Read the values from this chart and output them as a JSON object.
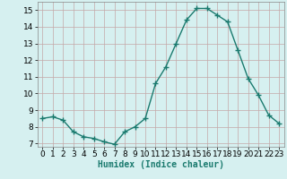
{
  "x": [
    0,
    1,
    2,
    3,
    4,
    5,
    6,
    7,
    8,
    9,
    10,
    11,
    12,
    13,
    14,
    15,
    16,
    17,
    18,
    19,
    20,
    21,
    22,
    23
  ],
  "y": [
    8.5,
    8.6,
    8.4,
    7.7,
    7.4,
    7.3,
    7.1,
    6.95,
    7.7,
    8.0,
    8.5,
    10.6,
    11.6,
    13.0,
    14.4,
    15.1,
    15.1,
    14.7,
    14.3,
    12.6,
    10.9,
    9.9,
    8.7,
    8.2
  ],
  "line_color": "#1a7a6e",
  "marker": "+",
  "marker_size": 4,
  "bg_color": "#d6f0f0",
  "grid_color": "#c4a8a8",
  "xlabel": "Humidex (Indice chaleur)",
  "ylim": [
    6.8,
    15.5
  ],
  "xlim": [
    -0.5,
    23.5
  ],
  "yticks": [
    7,
    8,
    9,
    10,
    11,
    12,
    13,
    14,
    15
  ],
  "xticks": [
    0,
    1,
    2,
    3,
    4,
    5,
    6,
    7,
    8,
    9,
    10,
    11,
    12,
    13,
    14,
    15,
    16,
    17,
    18,
    19,
    20,
    21,
    22,
    23
  ],
  "xlabel_fontsize": 7,
  "tick_fontsize": 6.5,
  "line_width": 1.0
}
